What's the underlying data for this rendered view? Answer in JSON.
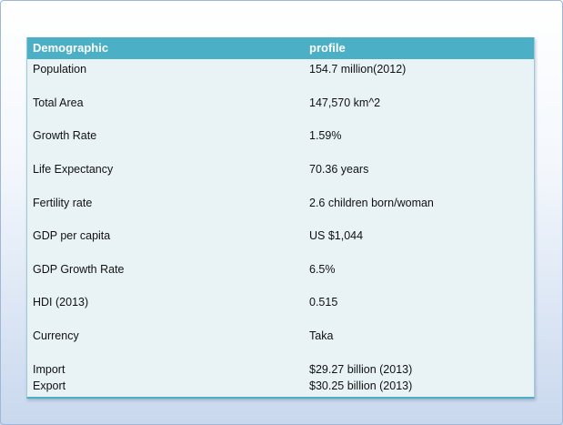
{
  "table": {
    "headers": [
      "Demographic",
      "profile"
    ],
    "rows": [
      {
        "label": "Population",
        "value": "154.7  million(2012)"
      },
      {
        "label": " Total Area",
        "value": "147,570  km^2"
      },
      {
        "label": "Growth Rate",
        "value": "1.59%"
      },
      {
        "label": "Life Expectancy",
        "value": "70.36  years"
      },
      {
        "label": "Fertility rate",
        "value": "2.6 children born/woman"
      },
      {
        "label": "GDP per capita",
        "value": "US $1,044"
      },
      {
        "label": "GDP Growth Rate",
        "value": "6.5%"
      },
      {
        "label": " HDI  (2013)",
        "value": "0.515"
      },
      {
        "label": "Currency",
        "value": "Taka"
      },
      {
        "label": "Import",
        "value": "$29.27  billion  (2013)"
      },
      {
        "label": "Export",
        "value": "$30.25  billion  (2013)"
      }
    ]
  },
  "colors": {
    "header": "#4bafc6",
    "body": "#e9f3f6"
  }
}
